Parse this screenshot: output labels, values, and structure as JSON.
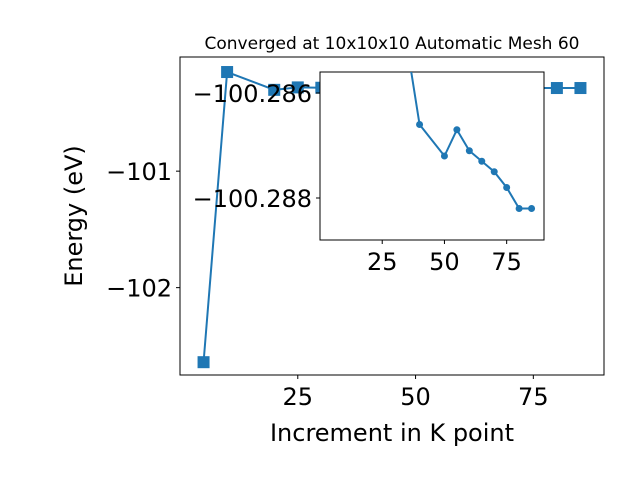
{
  "colors": {
    "series": "#1f77b4",
    "axes": "#000000",
    "background": "#ffffff"
  },
  "chart_data": [
    {
      "panel": "main",
      "type": "line",
      "title": "Converged at 10x10x10 Automatic Mesh 60",
      "xlabel": "Increment in K point",
      "ylabel": "Energy (eV)",
      "marker": "square",
      "grid": false,
      "xlim": [
        0,
        90
      ],
      "ylim": [
        -102.75,
        -100.02
      ],
      "xticks": [
        25,
        50,
        75
      ],
      "xtick_labels": [
        "25",
        "50",
        "75"
      ],
      "yticks": [
        -102,
        -101
      ],
      "ytick_labels": [
        "−102",
        "−101"
      ],
      "x": [
        5,
        10,
        20,
        25,
        30,
        40,
        50,
        55,
        60,
        65,
        70,
        75,
        80,
        85
      ],
      "y": [
        -102.64,
        -100.149,
        -100.302,
        -100.281,
        -100.284,
        -100.287,
        -100.2869,
        -100.2879,
        -100.2866,
        -100.2865,
        -100.2863,
        -100.2864,
        -100.2864,
        -100.2864
      ]
    },
    {
      "panel": "inset",
      "type": "line",
      "marker": "circle",
      "grid": false,
      "xlim": [
        0,
        90
      ],
      "ylim": [
        -100.2888,
        -100.2856
      ],
      "xticks": [
        25,
        50,
        75
      ],
      "xtick_labels": [
        "25",
        "50",
        "75"
      ],
      "yticks": [
        -100.288,
        -100.286
      ],
      "ytick_labels": [
        "−100.288",
        "−100.286"
      ],
      "x": [
        35,
        40,
        50,
        55,
        60,
        65,
        70,
        75,
        80,
        85
      ],
      "y": [
        -100.2851,
        -100.2866,
        -100.2872,
        -100.2867,
        -100.2871,
        -100.2873,
        -100.2875,
        -100.2878,
        -100.2882,
        -100.2882
      ]
    }
  ]
}
